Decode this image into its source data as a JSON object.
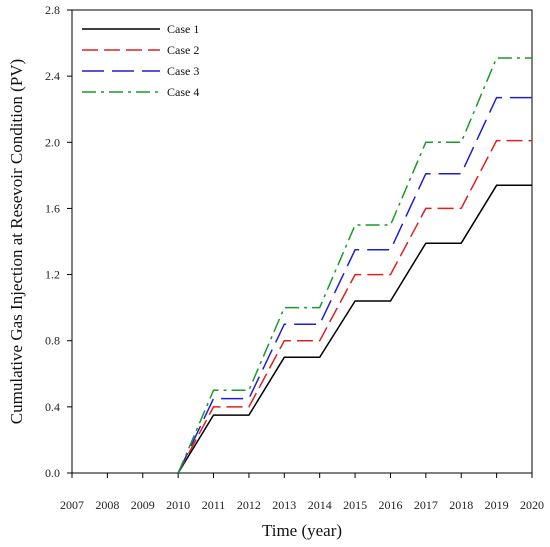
{
  "chart_data": {
    "type": "line",
    "title": "",
    "xlabel": "Time (year)",
    "ylabel": "Cumulative Gas Injection at Resevoir Condition (PV)",
    "xlim": [
      2007,
      2020
    ],
    "ylim": [
      0,
      2.8
    ],
    "xticks": [
      "2007",
      "2008",
      "2009",
      "2010",
      "2011",
      "2012",
      "2013",
      "2014",
      "2015",
      "2016",
      "2017",
      "2018",
      "2019",
      "2020"
    ],
    "yticks": [
      "0.0",
      "0.4",
      "0.8",
      "1.2",
      "1.6",
      "2.0",
      "2.4",
      "2.8"
    ],
    "grid": false,
    "legend_position": "top-left",
    "series": [
      {
        "name": "Case 1",
        "color": "#000000",
        "dash": "solid",
        "x": [
          2010,
          2011,
          2012,
          2013,
          2014,
          2015,
          2016,
          2017,
          2018,
          2019,
          2020
        ],
        "y": [
          0,
          0.35,
          0.35,
          0.7,
          0.7,
          1.04,
          1.04,
          1.39,
          1.39,
          1.74,
          1.74
        ]
      },
      {
        "name": "Case 2",
        "color": "#e02020",
        "dash": "dashed",
        "x": [
          2010,
          2011,
          2012,
          2013,
          2014,
          2015,
          2016,
          2017,
          2018,
          2019,
          2020
        ],
        "y": [
          0,
          0.4,
          0.4,
          0.8,
          0.8,
          1.2,
          1.2,
          1.6,
          1.6,
          2.01,
          2.01
        ]
      },
      {
        "name": "Case 3",
        "color": "#1f1fd0",
        "dash": "longdash",
        "x": [
          2010,
          2011,
          2012,
          2013,
          2014,
          2015,
          2016,
          2017,
          2018,
          2019,
          2020
        ],
        "y": [
          0,
          0.45,
          0.45,
          0.9,
          0.9,
          1.35,
          1.35,
          1.81,
          1.81,
          2.27,
          2.27
        ]
      },
      {
        "name": "Case 4",
        "color": "#1a9a2a",
        "dash": "dashdot",
        "x": [
          2010,
          2011,
          2012,
          2013,
          2014,
          2015,
          2016,
          2017,
          2018,
          2019,
          2020
        ],
        "y": [
          0,
          0.5,
          0.5,
          1.0,
          1.0,
          1.5,
          1.5,
          2.0,
          2.0,
          2.51,
          2.51
        ]
      }
    ]
  }
}
